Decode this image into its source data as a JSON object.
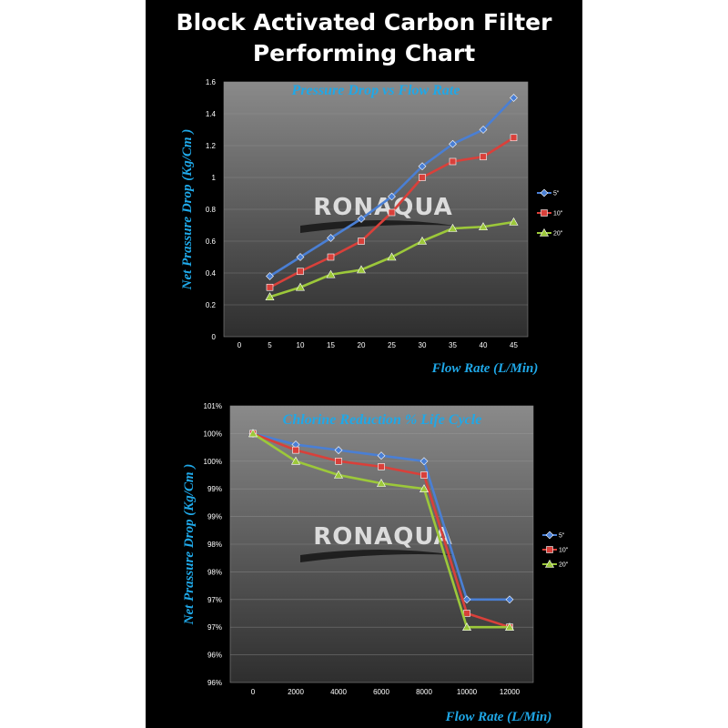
{
  "page": {
    "title_line1": "Block Activated Carbon Filter",
    "title_line2": "Performing Chart"
  },
  "watermark": "RONAQUA",
  "chart_data": [
    {
      "type": "line",
      "title": "Pressure Drop vs Flow Rate",
      "xlabel": "Flow Rate (L/Min)",
      "ylabel": "Net Prassure Drop (Kg/Cm )",
      "categories": [
        "0",
        "5",
        "10",
        "15",
        "20",
        "25",
        "30",
        "35",
        "40",
        "45"
      ],
      "ylim": [
        0,
        1.6
      ],
      "yticks": [
        "0",
        "0.2",
        "0.4",
        "0.6",
        "0.8",
        "1",
        "1.2",
        "1.4",
        "1.6"
      ],
      "grid": true,
      "legend": "right",
      "series": [
        {
          "name": "5\"",
          "color": "#4a7fd4",
          "marker": "diamond",
          "values": [
            null,
            0.38,
            0.5,
            0.62,
            0.74,
            0.88,
            1.07,
            1.21,
            1.3,
            1.5
          ]
        },
        {
          "name": "10\"",
          "color": "#d9403a",
          "marker": "square",
          "values": [
            null,
            0.31,
            0.41,
            0.5,
            0.6,
            0.78,
            1.0,
            1.1,
            1.13,
            1.25
          ]
        },
        {
          "name": "20\"",
          "color": "#9cc83a",
          "marker": "triangle",
          "values": [
            null,
            0.25,
            0.31,
            0.39,
            0.42,
            0.5,
            0.6,
            0.68,
            0.69,
            0.72
          ]
        }
      ]
    },
    {
      "type": "line",
      "title": "Chlorine Reduction % Life Cycle",
      "xlabel": "Flow Rate (L/Min)",
      "ylabel": "Net Prassure Drop (Kg/Cm )",
      "categories": [
        "0",
        "2000",
        "4000",
        "6000",
        "8000",
        "10000",
        "12000"
      ],
      "ylim": [
        96,
        101
      ],
      "yticks": [
        "96%",
        "96%",
        "97%",
        "97%",
        "98%",
        "98%",
        "99%",
        "99%",
        "100%",
        "100%",
        "101%"
      ],
      "grid": true,
      "legend": "right",
      "series": [
        {
          "name": "5\"",
          "color": "#4a7fd4",
          "marker": "diamond",
          "values": [
            100.5,
            100.3,
            100.2,
            100.1,
            100.0,
            97.5,
            97.5
          ]
        },
        {
          "name": "10\"",
          "color": "#d9403a",
          "marker": "square",
          "values": [
            100.5,
            100.2,
            100.0,
            99.9,
            99.75,
            97.25,
            97.0
          ]
        },
        {
          "name": "20\"",
          "color": "#9cc83a",
          "marker": "triangle",
          "values": [
            100.5,
            100.0,
            99.75,
            99.6,
            99.5,
            97.0,
            97.0
          ]
        }
      ]
    }
  ]
}
